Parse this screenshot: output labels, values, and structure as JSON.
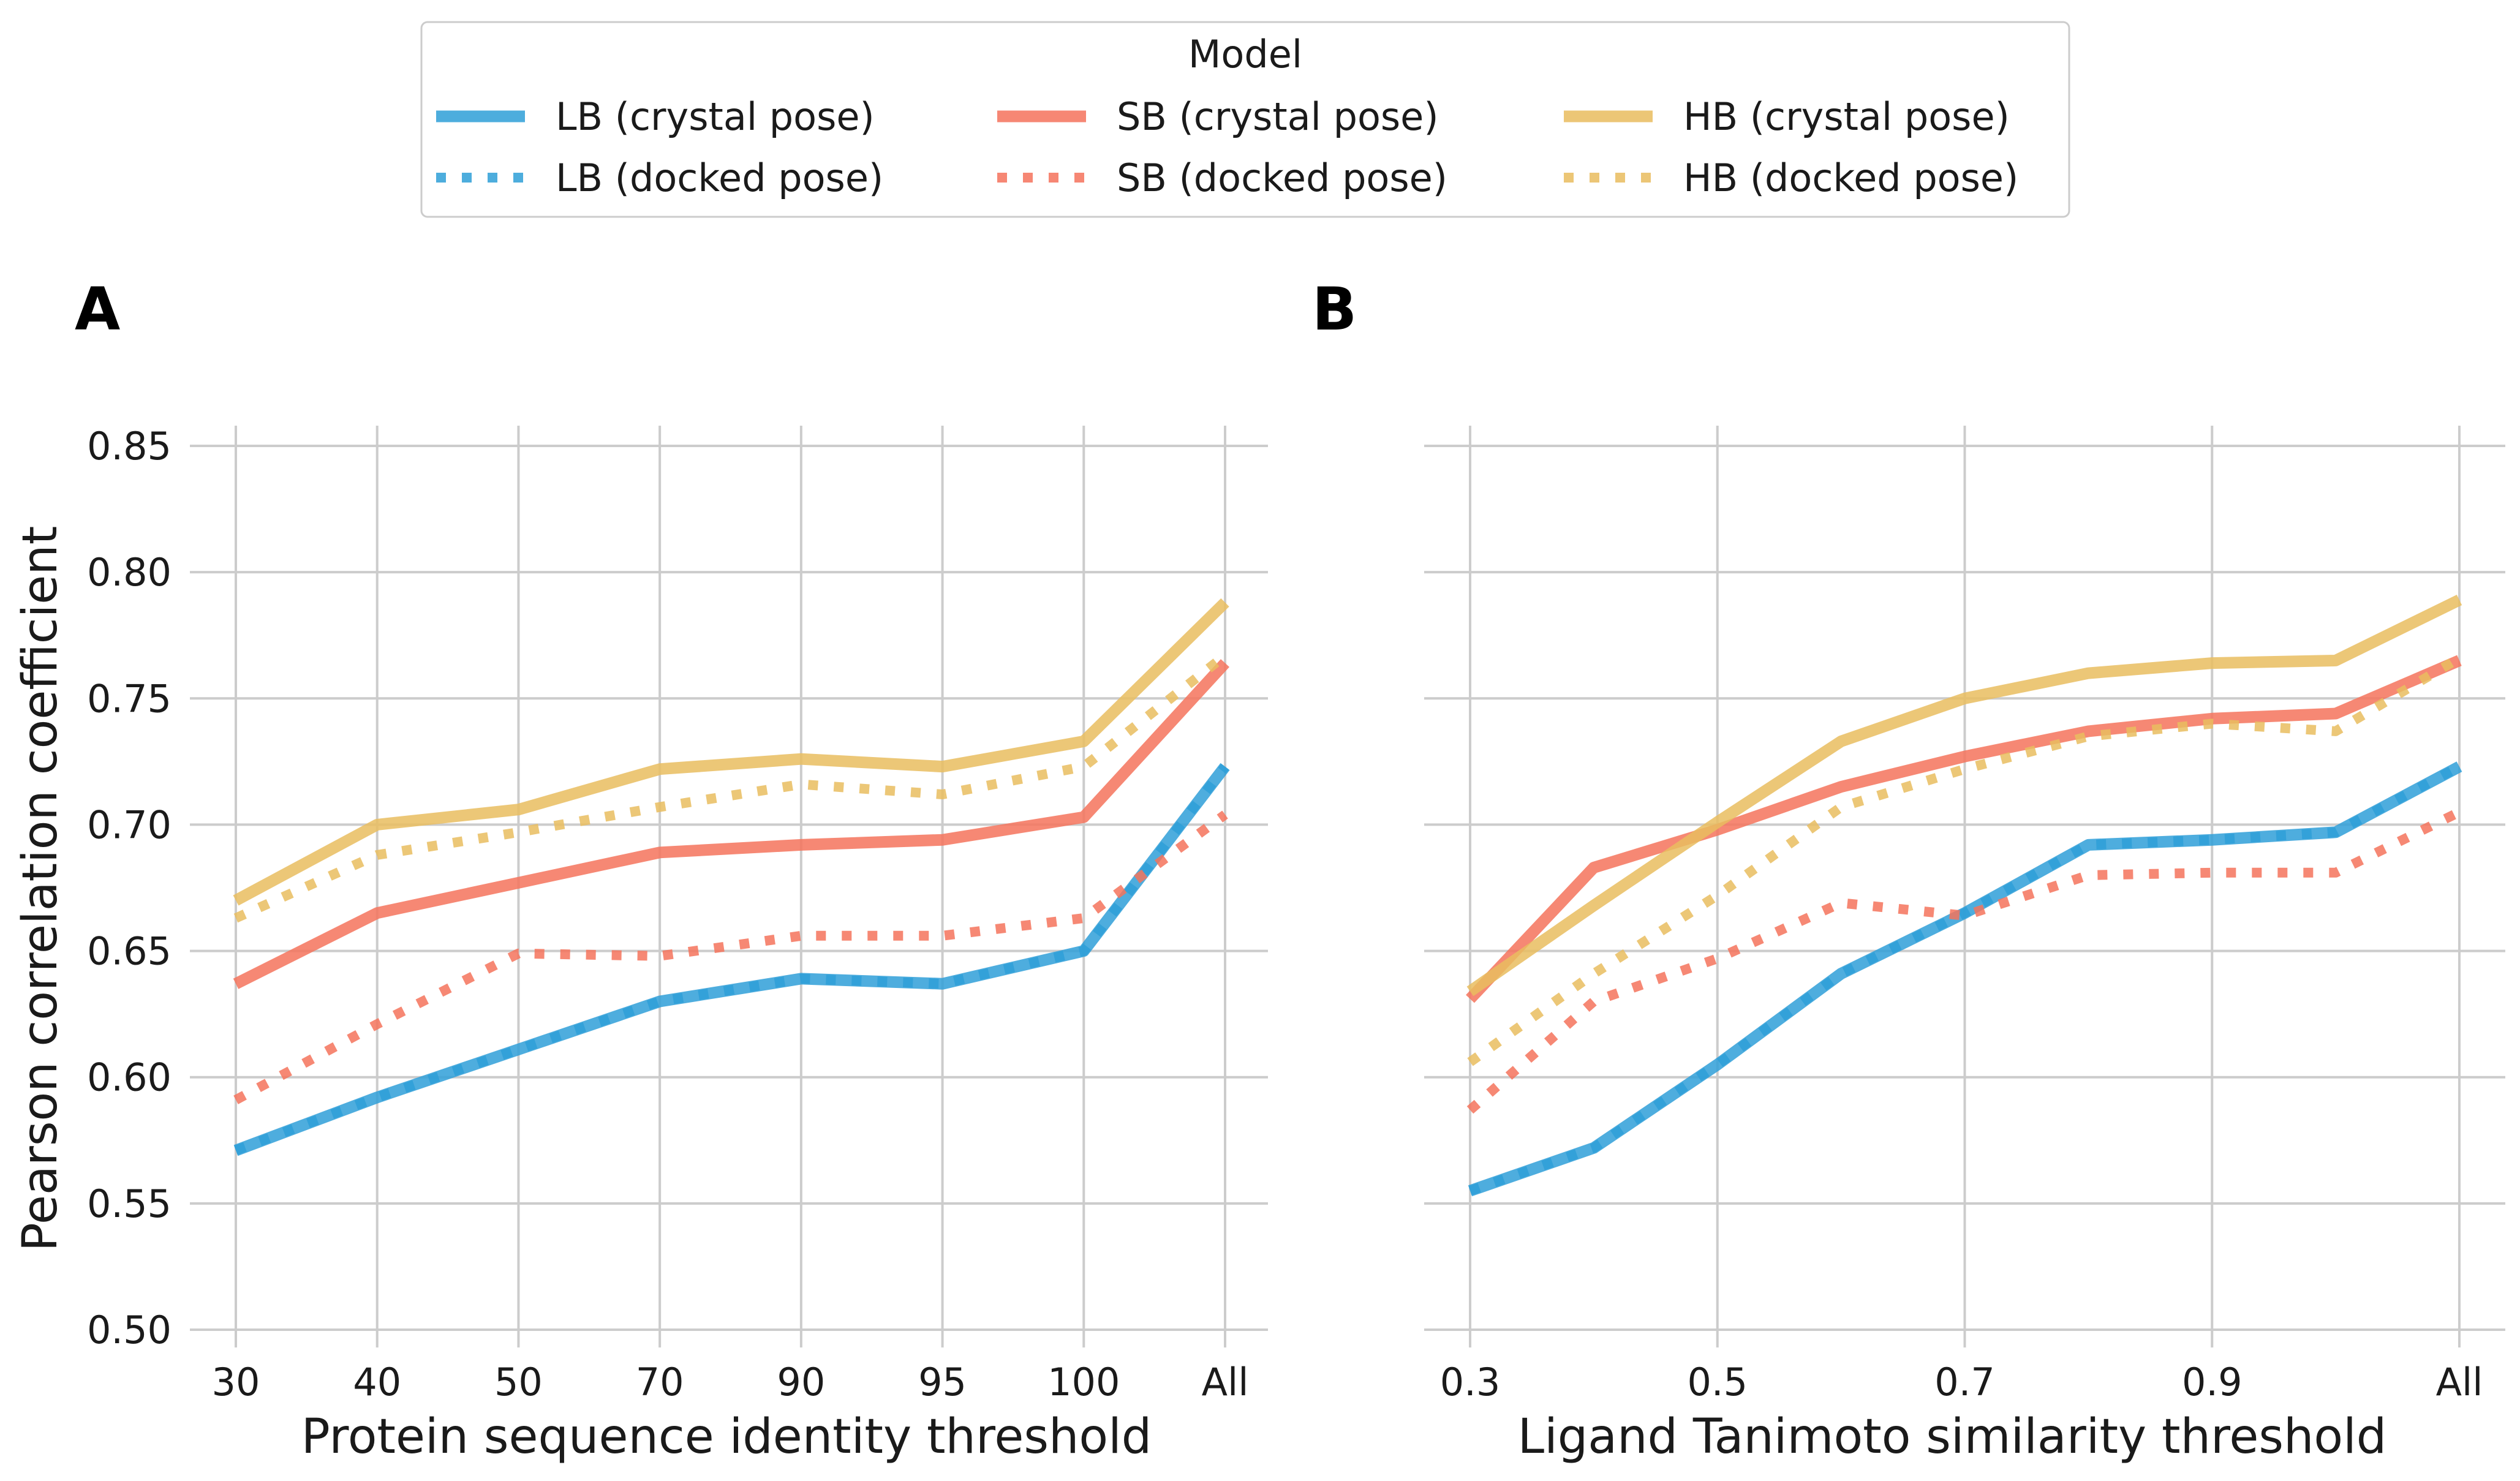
{
  "legend": {
    "title": "Model",
    "entries": [
      {
        "label": "LB (crystal pose)",
        "color": "#2f9fd8",
        "style": "solid"
      },
      {
        "label": "LB (docked pose)",
        "color": "#2f9fd8",
        "style": "dotted"
      },
      {
        "label": "SB (crystal pose)",
        "color": "#f5735c",
        "style": "solid"
      },
      {
        "label": "SB (docked pose)",
        "color": "#f5735c",
        "style": "dotted"
      },
      {
        "label": "HB (crystal pose)",
        "color": "#e9bd5f",
        "style": "solid"
      },
      {
        "label": "HB (docked pose)",
        "color": "#e9bd5f",
        "style": "dotted"
      }
    ]
  },
  "chart_data": [
    {
      "panel": "A",
      "type": "line",
      "xlabel": "Protein sequence identity threshold",
      "ylabel": "Pearson correlation coefficient",
      "categories": [
        "30",
        "40",
        "50",
        "70",
        "90",
        "95",
        "100",
        "All"
      ],
      "ylim": [
        0.5,
        0.85
      ],
      "yticks": [
        "0.50",
        "0.55",
        "0.60",
        "0.65",
        "0.70",
        "0.75",
        "0.80",
        "0.85"
      ],
      "grid": true,
      "series": [
        {
          "name": "LB (crystal pose)",
          "color": "#2f9fd8",
          "style": "solid",
          "values": [
            0.571,
            0.592,
            0.611,
            0.63,
            0.639,
            0.637,
            0.65,
            0.723
          ]
        },
        {
          "name": "LB (docked pose)",
          "color": "#2f9fd8",
          "style": "dotted",
          "values": [
            0.571,
            0.592,
            0.611,
            0.63,
            0.639,
            0.637,
            0.65,
            0.723
          ]
        },
        {
          "name": "SB (crystal pose)",
          "color": "#f5735c",
          "style": "solid",
          "values": [
            0.637,
            0.665,
            0.677,
            0.689,
            0.692,
            0.694,
            0.703,
            0.764
          ]
        },
        {
          "name": "SB (docked pose)",
          "color": "#f5735c",
          "style": "dotted",
          "values": [
            0.591,
            0.621,
            0.649,
            0.648,
            0.656,
            0.656,
            0.663,
            0.704
          ]
        },
        {
          "name": "HB (crystal pose)",
          "color": "#e9bd5f",
          "style": "solid",
          "values": [
            0.67,
            0.7,
            0.706,
            0.722,
            0.726,
            0.723,
            0.733,
            0.788
          ]
        },
        {
          "name": "HB (docked pose)",
          "color": "#e9bd5f",
          "style": "dotted",
          "values": [
            0.663,
            0.688,
            0.697,
            0.707,
            0.716,
            0.712,
            0.723,
            0.767
          ]
        }
      ]
    },
    {
      "panel": "B",
      "type": "line",
      "xlabel": "Ligand Tanimoto similarity threshold",
      "ylabel": "",
      "x": [
        0.3,
        0.4,
        0.5,
        0.6,
        0.7,
        0.8,
        0.9,
        1.0,
        1.1
      ],
      "xticks": [
        {
          "at": 0.3,
          "label": "0.3"
        },
        {
          "at": 0.5,
          "label": "0.5"
        },
        {
          "at": 0.7,
          "label": "0.7"
        },
        {
          "at": 0.9,
          "label": "0.9"
        },
        {
          "at": 1.1,
          "label": "All"
        }
      ],
      "xlim": [
        0.3,
        1.1
      ],
      "ylim": [
        0.5,
        0.85
      ],
      "grid": true,
      "series": [
        {
          "name": "LB (crystal pose)",
          "color": "#2f9fd8",
          "style": "solid",
          "values": [
            0.555,
            0.572,
            0.605,
            0.641,
            0.665,
            0.692,
            0.694,
            0.697,
            0.723
          ]
        },
        {
          "name": "LB (docked pose)",
          "color": "#2f9fd8",
          "style": "dotted",
          "values": [
            0.555,
            0.572,
            0.605,
            0.641,
            0.665,
            0.692,
            0.694,
            0.697,
            0.723
          ]
        },
        {
          "name": "SB (crystal pose)",
          "color": "#f5735c",
          "style": "solid",
          "values": [
            0.631,
            0.683,
            0.698,
            0.715,
            0.727,
            0.737,
            0.742,
            0.744,
            0.765
          ]
        },
        {
          "name": "SB (docked pose)",
          "color": "#f5735c",
          "style": "dotted",
          "values": [
            0.587,
            0.63,
            0.647,
            0.669,
            0.664,
            0.68,
            0.681,
            0.681,
            0.705
          ]
        },
        {
          "name": "HB (crystal pose)",
          "color": "#e9bd5f",
          "style": "solid",
          "values": [
            0.634,
            0.668,
            0.701,
            0.733,
            0.75,
            0.76,
            0.764,
            0.765,
            0.789
          ]
        },
        {
          "name": "HB (docked pose)",
          "color": "#e9bd5f",
          "style": "dotted",
          "values": [
            0.606,
            0.641,
            0.672,
            0.707,
            0.722,
            0.735,
            0.74,
            0.737,
            0.766
          ]
        }
      ]
    }
  ]
}
